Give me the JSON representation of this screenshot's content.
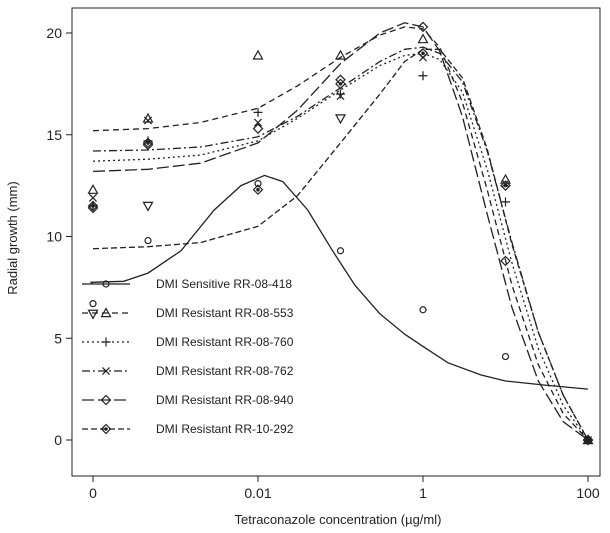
{
  "chart_data": {
    "type": "line",
    "title": "",
    "xlabel": "Tetraconazole concentration (µg/ml)",
    "ylabel": "Radial growth (mm)",
    "x_scale": "log",
    "x_ticks": [
      {
        "value": 0,
        "label": "0"
      },
      {
        "value": 0.01,
        "label": "0.01"
      },
      {
        "value": 1,
        "label": "1"
      },
      {
        "value": 100,
        "label": "100"
      }
    ],
    "y_ticks": [
      0,
      5,
      10,
      15,
      20
    ],
    "ylim": [
      0,
      20
    ],
    "legend_position": "bottom-left",
    "series": [
      {
        "name": "DMI Sensitive RR-08-418",
        "marker": "circle",
        "dash": "",
        "observed": [
          [
            0,
            6.7
          ],
          [
            0.001,
            9.8
          ],
          [
            0.01,
            12.6
          ],
          [
            0.1,
            9.3
          ],
          [
            1,
            6.4
          ],
          [
            10,
            4.1
          ],
          [
            100,
            0
          ]
        ],
        "fitted": [
          [
            0,
            7.7
          ],
          [
            0.0003,
            7.75
          ],
          [
            0.0006,
            7.8
          ],
          [
            0.001,
            8.2
          ],
          [
            0.002,
            9.3
          ],
          [
            0.004,
            11.3
          ],
          [
            0.007,
            12.5
          ],
          [
            0.012,
            13.0
          ],
          [
            0.02,
            12.7
          ],
          [
            0.04,
            11.3
          ],
          [
            0.08,
            9.3
          ],
          [
            0.15,
            7.6
          ],
          [
            0.3,
            6.2
          ],
          [
            0.6,
            5.2
          ],
          [
            1,
            4.6
          ],
          [
            2,
            3.8
          ],
          [
            5,
            3.2
          ],
          [
            10,
            2.9
          ],
          [
            30,
            2.7
          ],
          [
            100,
            2.5
          ]
        ]
      },
      {
        "name": "DMI Resistant RR-08-553",
        "marker": "triangle-up",
        "dash": "6,4",
        "observed": [
          [
            0,
            12.3
          ],
          [
            0.001,
            15.8
          ],
          [
            0.01,
            18.9
          ],
          [
            0.1,
            18.9
          ],
          [
            1,
            19.7
          ],
          [
            10,
            12.8
          ],
          [
            100,
            0
          ]
        ],
        "fitted": [
          [
            0,
            15.2
          ],
          [
            0.001,
            15.3
          ],
          [
            0.003,
            15.6
          ],
          [
            0.01,
            16.3
          ],
          [
            0.03,
            17.4
          ],
          [
            0.1,
            18.8
          ],
          [
            0.3,
            19.9
          ],
          [
            0.6,
            20.3
          ],
          [
            1,
            20.2
          ],
          [
            1.6,
            19.3
          ],
          [
            3,
            16.6
          ],
          [
            6,
            12.3
          ],
          [
            12,
            7.6
          ],
          [
            25,
            3.7
          ],
          [
            50,
            1.3
          ],
          [
            100,
            0
          ]
        ]
      },
      {
        "name": "DMI Resistant RR-08-760",
        "marker": "plus",
        "dash": "2,3",
        "observed": [
          [
            0,
            11.5
          ],
          [
            0.001,
            14.7
          ],
          [
            0.01,
            16.1
          ],
          [
            0.1,
            17.0
          ],
          [
            1,
            17.9
          ],
          [
            10,
            11.7
          ],
          [
            100,
            0
          ]
        ],
        "fitted": [
          [
            0,
            13.7
          ],
          [
            0.001,
            13.8
          ],
          [
            0.003,
            14.0
          ],
          [
            0.01,
            14.7
          ],
          [
            0.03,
            15.8
          ],
          [
            0.1,
            17.2
          ],
          [
            0.3,
            18.4
          ],
          [
            0.6,
            18.9
          ],
          [
            1,
            19.0
          ],
          [
            1.6,
            18.7
          ],
          [
            3,
            17.1
          ],
          [
            6,
            13.3
          ],
          [
            12,
            8.7
          ],
          [
            25,
            4.5
          ],
          [
            50,
            1.7
          ],
          [
            100,
            0
          ]
        ]
      },
      {
        "name": "DMI Resistant RR-08-762",
        "marker": "x",
        "dash": "8,3,2,3",
        "observed": [
          [
            0,
            11.9
          ],
          [
            0.001,
            15.7
          ],
          [
            0.01,
            15.6
          ],
          [
            0.1,
            16.9
          ],
          [
            1,
            18.8
          ],
          [
            10,
            12.6
          ],
          [
            100,
            0
          ]
        ],
        "fitted": [
          [
            0,
            14.2
          ],
          [
            0.001,
            14.25
          ],
          [
            0.003,
            14.4
          ],
          [
            0.01,
            14.9
          ],
          [
            0.03,
            15.9
          ],
          [
            0.1,
            17.3
          ],
          [
            0.3,
            18.6
          ],
          [
            0.6,
            19.2
          ],
          [
            1,
            19.3
          ],
          [
            1.6,
            19.0
          ],
          [
            3,
            17.6
          ],
          [
            6,
            14.2
          ],
          [
            12,
            9.7
          ],
          [
            25,
            5.3
          ],
          [
            50,
            2.2
          ],
          [
            100,
            0
          ]
        ]
      },
      {
        "name": "DMI Resistant RR-08-940",
        "marker": "diamond",
        "dash": "12,4",
        "observed": [
          [
            0,
            11.4
          ],
          [
            0.001,
            14.5
          ],
          [
            0.01,
            15.3
          ],
          [
            0.1,
            17.7
          ],
          [
            1,
            20.3
          ],
          [
            10,
            8.8
          ],
          [
            100,
            0
          ]
        ],
        "fitted": [
          [
            0,
            13.2
          ],
          [
            0.001,
            13.3
          ],
          [
            0.003,
            13.6
          ],
          [
            0.01,
            14.6
          ],
          [
            0.03,
            16.2
          ],
          [
            0.1,
            18.5
          ],
          [
            0.3,
            20.0
          ],
          [
            0.6,
            20.5
          ],
          [
            1,
            20.3
          ],
          [
            1.6,
            19.1
          ],
          [
            3,
            15.9
          ],
          [
            6,
            11.1
          ],
          [
            12,
            6.5
          ],
          [
            25,
            2.9
          ],
          [
            50,
            0.9
          ],
          [
            100,
            0
          ]
        ]
      },
      {
        "name": "DMI Resistant RR-10-292",
        "marker": "diamond-dot",
        "dash": "6,3",
        "observed": [
          [
            0,
            11.5
          ],
          [
            0.001,
            14.6
          ],
          [
            0.01,
            12.3
          ],
          [
            0.1,
            17.5
          ],
          [
            1,
            19.0
          ],
          [
            10,
            12.5
          ],
          [
            100,
            0
          ]
        ],
        "fitted": [
          [
            0,
            9.4
          ],
          [
            0.001,
            9.5
          ],
          [
            0.003,
            9.7
          ],
          [
            0.01,
            10.5
          ],
          [
            0.03,
            12.0
          ],
          [
            0.1,
            14.6
          ],
          [
            0.3,
            17.0
          ],
          [
            0.6,
            18.6
          ],
          [
            1,
            19.2
          ],
          [
            1.6,
            19.2
          ],
          [
            3,
            17.8
          ],
          [
            6,
            14.3
          ],
          [
            12,
            9.6
          ],
          [
            25,
            5.3
          ],
          [
            50,
            2.2
          ],
          [
            100,
            0
          ]
        ]
      }
    ],
    "extra_points": [
      {
        "series": "DMI Resistant RR-08-553",
        "x": 0,
        "y": 6.2,
        "marker": "triangle-down"
      },
      {
        "series": "DMI Resistant RR-08-553",
        "x": 0.001,
        "y": 11.5,
        "marker": "triangle-down"
      },
      {
        "series": "DMI Resistant RR-08-553",
        "x": 0.1,
        "y": 15.8,
        "marker": "triangle-down"
      }
    ]
  }
}
